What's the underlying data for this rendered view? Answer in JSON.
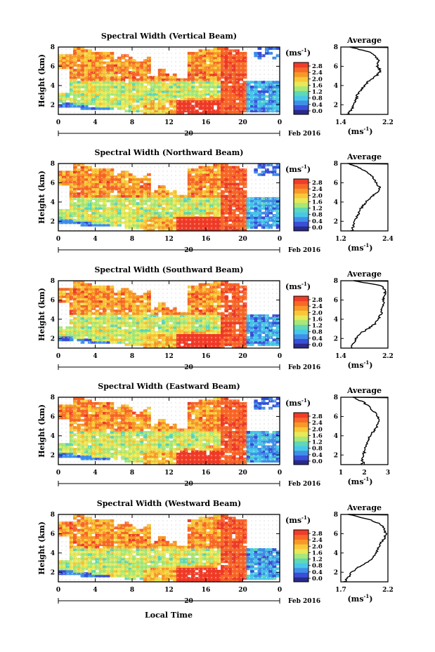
{
  "figure": {
    "xlabel": "Local Time",
    "date_label": "Feb 2016",
    "day_marker": "20",
    "ylabel": "Height (km)",
    "avg_title": "Average",
    "unit_label": "(ms",
    "unit_sup": "-1",
    "unit_close": ")"
  },
  "colorbar": {
    "ticks": [
      "2.8",
      "2.4",
      "2.0",
      "1.6",
      "1.2",
      "0.8",
      "0.4",
      "0.0"
    ],
    "colors": [
      "#2a2a8a",
      "#3a4fd8",
      "#3f8fe8",
      "#48c8e8",
      "#5ed8b8",
      "#a8e878",
      "#e8e858",
      "#f8c838",
      "#f89828",
      "#f86828",
      "#f03c28"
    ]
  },
  "chart_data": [
    {
      "type": "heatmap",
      "title": "Spectral Width (Vertical Beam)",
      "xlabel": "Local Time",
      "ylabel": "Height (km)",
      "x_ticks": [
        "0",
        "4",
        "8",
        "12",
        "16",
        "20",
        "0"
      ],
      "y_ticks": [
        "2",
        "4",
        "6",
        "8"
      ],
      "xlim": [
        0,
        24
      ],
      "ylim": [
        1,
        8
      ],
      "colorbar_range": [
        0,
        2.8
      ],
      "average": {
        "title": "Average",
        "xlim": [
          1.4,
          2.2
        ],
        "x_ticks": [
          "1.4",
          "2.2"
        ],
        "height_km": [
          1.0,
          1.5,
          2.0,
          2.5,
          3.0,
          3.5,
          4.0,
          4.5,
          5.0,
          5.5,
          6.0,
          6.5,
          7.0,
          7.5,
          8.0
        ],
        "width": [
          1.52,
          1.58,
          1.62,
          1.66,
          1.68,
          1.74,
          1.8,
          1.88,
          2.0,
          2.08,
          2.02,
          2.04,
          2.0,
          1.88,
          1.55
        ]
      }
    },
    {
      "type": "heatmap",
      "title": "Spectral Width (Northward Beam)",
      "xlabel": "Local Time",
      "ylabel": "Height (km)",
      "x_ticks": [
        "0",
        "4",
        "8",
        "12",
        "16",
        "20",
        "0"
      ],
      "y_ticks": [
        "2",
        "4",
        "6",
        "8"
      ],
      "xlim": [
        0,
        24
      ],
      "ylim": [
        1,
        8
      ],
      "colorbar_range": [
        0,
        2.8
      ],
      "average": {
        "title": "Average",
        "xlim": [
          1.2,
          2.4
        ],
        "x_ticks": [
          "1.2",
          "2.4"
        ],
        "height_km": [
          1.0,
          1.5,
          2.0,
          2.5,
          3.0,
          3.5,
          4.0,
          4.5,
          5.0,
          5.5,
          6.0,
          6.5,
          7.0,
          7.5,
          8.0
        ],
        "width": [
          1.48,
          1.52,
          1.56,
          1.62,
          1.66,
          1.74,
          1.84,
          1.98,
          2.12,
          2.2,
          2.1,
          2.02,
          1.9,
          1.7,
          1.4
        ]
      }
    },
    {
      "type": "heatmap",
      "title": "Spectral Width (Southward Beam)",
      "xlabel": "Local Time",
      "ylabel": "Height (km)",
      "x_ticks": [
        "0",
        "4",
        "8",
        "12",
        "16",
        "20",
        "0"
      ],
      "y_ticks": [
        "2",
        "4",
        "6",
        "8"
      ],
      "xlim": [
        0,
        24
      ],
      "ylim": [
        1,
        8
      ],
      "colorbar_range": [
        0,
        2.8
      ],
      "average": {
        "title": "Average",
        "xlim": [
          1.4,
          2.2
        ],
        "x_ticks": [
          "1.4",
          "2.2"
        ],
        "height_km": [
          1.0,
          1.5,
          2.0,
          2.5,
          3.0,
          3.5,
          4.0,
          4.5,
          5.0,
          5.5,
          6.0,
          6.5,
          7.0,
          7.5,
          8.0
        ],
        "width": [
          1.58,
          1.62,
          1.66,
          1.72,
          1.86,
          1.98,
          2.04,
          2.08,
          2.1,
          2.12,
          2.12,
          2.14,
          2.16,
          2.08,
          1.62
        ]
      }
    },
    {
      "type": "heatmap",
      "title": "Spectral Width (Eastward Beam)",
      "xlabel": "Local Time",
      "ylabel": "Height (km)",
      "x_ticks": [
        "0",
        "4",
        "8",
        "12",
        "16",
        "20",
        "0"
      ],
      "y_ticks": [
        "2",
        "4",
        "6",
        "8"
      ],
      "xlim": [
        0,
        24
      ],
      "ylim": [
        1,
        8
      ],
      "colorbar_range": [
        0,
        2.8
      ],
      "average": {
        "title": "Average",
        "xlim": [
          1,
          3
        ],
        "x_ticks": [
          "1",
          "2",
          "3"
        ],
        "height_km": [
          1.0,
          1.5,
          2.0,
          2.5,
          3.0,
          3.5,
          4.0,
          4.5,
          5.0,
          5.5,
          6.0,
          6.5,
          7.0,
          7.5,
          8.0
        ],
        "width": [
          1.9,
          1.92,
          1.96,
          2.02,
          2.08,
          2.16,
          2.24,
          2.4,
          2.55,
          2.62,
          2.55,
          2.42,
          2.2,
          1.95,
          1.5
        ]
      }
    },
    {
      "type": "heatmap",
      "title": "Spectral Width (Westward Beam)",
      "xlabel": "Local Time",
      "ylabel": "Height (km)",
      "x_ticks": [
        "0",
        "4",
        "8",
        "12",
        "16",
        "20",
        "0"
      ],
      "y_ticks": [
        "2",
        "4",
        "6",
        "8"
      ],
      "xlim": [
        0,
        24
      ],
      "ylim": [
        1,
        8
      ],
      "colorbar_range": [
        0,
        2.8
      ],
      "average": {
        "title": "Average",
        "xlim": [
          1.7,
          2.2
        ],
        "x_ticks": [
          "1.7",
          "2.2"
        ],
        "height_km": [
          1.0,
          1.5,
          2.0,
          2.5,
          3.0,
          3.5,
          4.0,
          4.5,
          5.0,
          5.5,
          6.0,
          6.5,
          7.0,
          7.5,
          8.0
        ],
        "width": [
          1.74,
          1.78,
          1.82,
          1.88,
          1.98,
          2.04,
          2.08,
          2.1,
          2.12,
          2.16,
          2.18,
          2.16,
          2.12,
          2.0,
          1.78
        ]
      }
    }
  ]
}
